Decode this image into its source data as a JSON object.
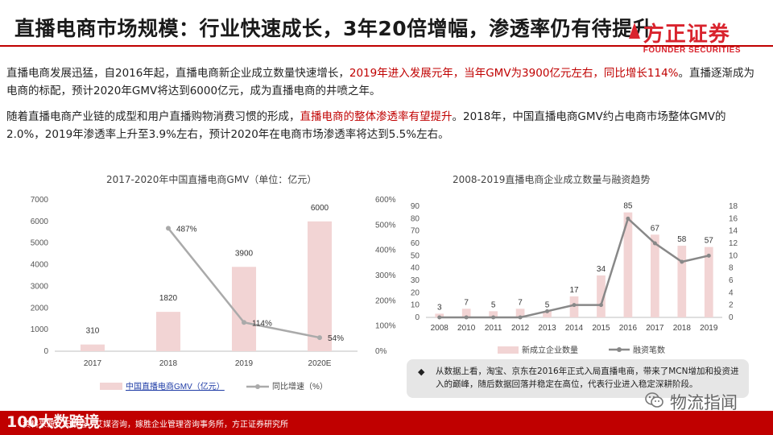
{
  "header": {
    "title": "直播电商市场规模：行业快速成长，3年20倍增幅，渗透率仍有待提升",
    "logo_text": "方正证券",
    "logo_sub": "FOUNDER SECURITIES",
    "accent_color": "#c00000"
  },
  "paragraphs": {
    "p1_before": "直播电商发展迅猛，自2016年起，直播电商新企业成立数量快速增长，",
    "p1_highlight": "2019年进入发展元年，当年GMV为3900亿元左右，同比增长114%",
    "p1_after": "。直播逐渐成为电商的标配，预计2020年GMV将达到6000亿元，成为直播电商的井喷之年。",
    "p2_before": "随着直播电商产业链的成型和用户直播购物消费习惯的形成，",
    "p2_highlight": "直播电商的整体渗透率有望提升",
    "p2_after": "。2018年，中国直播电商GMV约占电商市场整体GMV的2.0%，2019年渗透率上升至3.9%左右，预计2020年在电商市场渗透率将达到5.5%左右。"
  },
  "chart_data": [
    {
      "type": "bar",
      "title": "2017-2020年中国直播电商GMV（单位：亿元）",
      "categories": [
        "2017",
        "2018",
        "2019",
        "2020E"
      ],
      "series": [
        {
          "name": "中国直播电商GMV（亿元）",
          "type": "bar",
          "axis": "left",
          "values": [
            310,
            1820,
            3900,
            6000
          ],
          "labels": [
            "310",
            "1820",
            "3900",
            "6000"
          ],
          "color": "#f2d4d4"
        },
        {
          "name": "同比增速（%）",
          "type": "line",
          "axis": "right",
          "values": [
            null,
            487,
            114,
            54
          ],
          "labels": [
            "",
            "487%",
            "114%",
            "54%"
          ],
          "color": "#aaaaaa"
        }
      ],
      "yticks_left": [
        "0",
        "1000",
        "2000",
        "3000",
        "4000",
        "5000",
        "6000",
        "7000"
      ],
      "yticks_right": [
        "0%",
        "100%",
        "200%",
        "300%",
        "400%",
        "500%",
        "600%"
      ],
      "ylim_left": [
        0,
        7000
      ],
      "ylim_right": [
        0,
        600
      ],
      "legend_position": "bottom"
    },
    {
      "type": "bar",
      "title": "2008-2019直播电商企业成立数量与融资趋势",
      "categories": [
        "2008",
        "2010",
        "2011",
        "2012",
        "2013",
        "2014",
        "2015",
        "2016",
        "2017",
        "2018",
        "2019"
      ],
      "series": [
        {
          "name": "新成立企业数量",
          "type": "bar",
          "axis": "left",
          "values": [
            3,
            7,
            5,
            7,
            5,
            17,
            34,
            85,
            67,
            58,
            57
          ],
          "labels": [
            "3",
            "7",
            "5",
            "7",
            "5",
            "17",
            "34",
            "85",
            "67",
            "58",
            "57"
          ],
          "color": "#f2d4d4"
        },
        {
          "name": "融资笔数",
          "type": "line",
          "axis": "right",
          "values": [
            0,
            0,
            0,
            0,
            1,
            2,
            2,
            16,
            12,
            9,
            10
          ],
          "color": "#888888"
        }
      ],
      "yticks_left": [
        "0",
        "10",
        "20",
        "30",
        "40",
        "50",
        "60",
        "70",
        "80",
        "90"
      ],
      "yticks_right": [
        "0",
        "2",
        "4",
        "6",
        "8",
        "10",
        "12",
        "14",
        "16",
        "18"
      ],
      "ylim_left": [
        0,
        90
      ],
      "ylim_right": [
        0,
        18
      ],
      "legend_position": "bottom"
    }
  ],
  "note": {
    "bullet": "◆",
    "text": "从数据上看，淘宝、京东在2016年正式入局直播电商，带来了MCN增加和投资进入的巅峰，随后数据回落并稳定在高位，代表行业进入稳定深耕阶段。"
  },
  "footer": {
    "source": "资料来源：天眼查，艾媒咨询，嫁胜企业管理咨询事务所，方正证券研究所"
  },
  "watermarks": {
    "left": "100大数跨境",
    "right": "物流指闻",
    "icon": "wechat-icon"
  }
}
